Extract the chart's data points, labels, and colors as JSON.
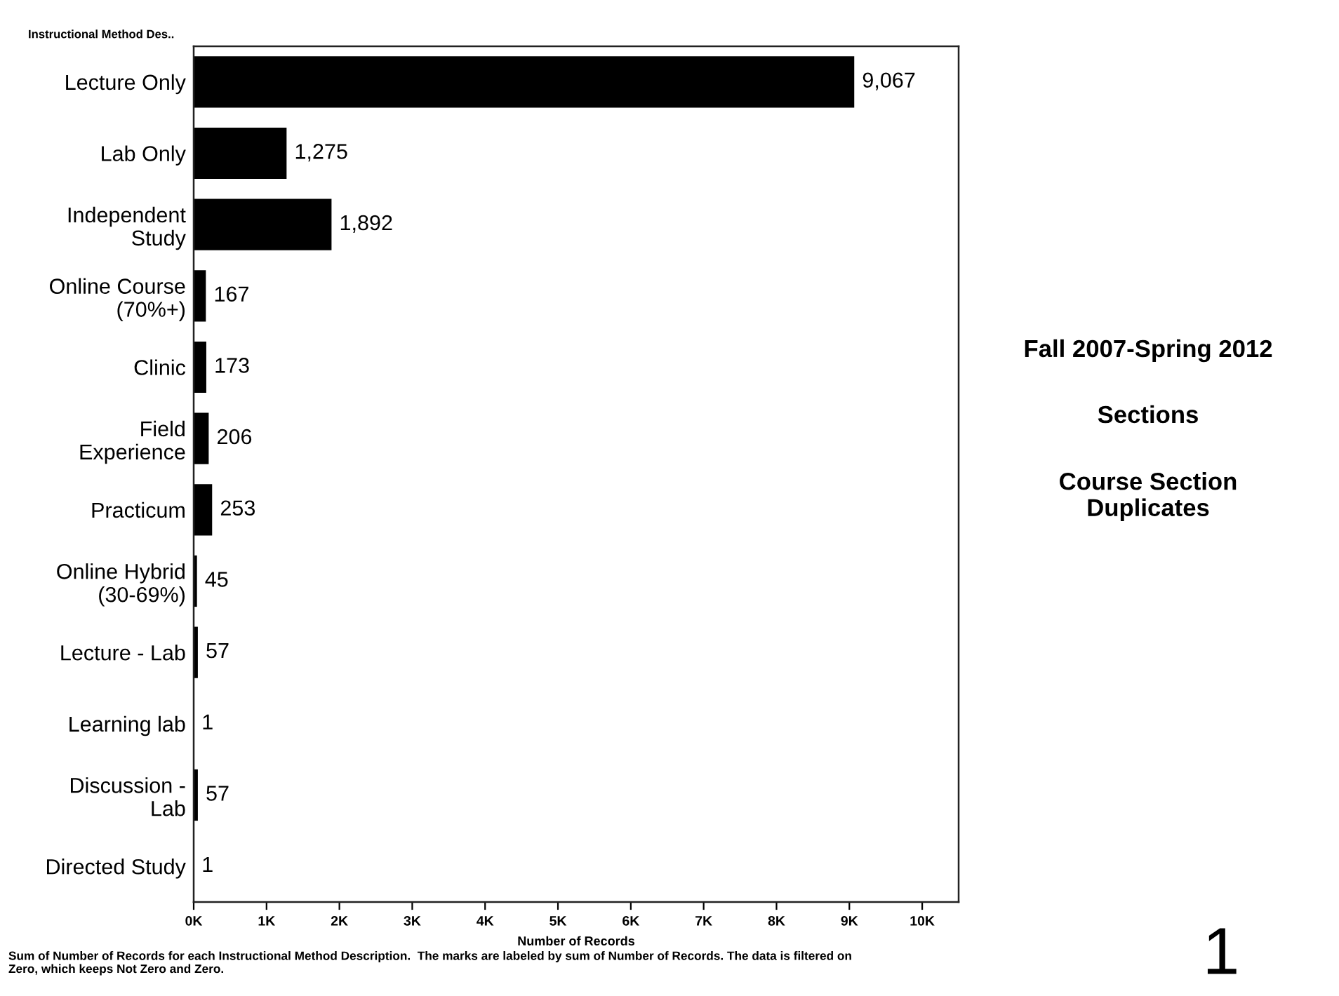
{
  "chart_data": {
    "type": "bar",
    "orientation": "horizontal",
    "title": "Fall 2007-Spring 2012",
    "subtitle": "Sections",
    "ylabel": "Instructional Method Des..",
    "xlabel": "Number of Records",
    "annotations": [
      "Course Section\nDuplicates",
      "1",
      "Sum of Number of Records for each Instructional Method Description.  The marks are labeled by sum of Number of Records. The data is filtered on\nZero, which keeps Not Zero and Zero."
    ],
    "categories": [
      "Lecture Only",
      "Lab Only",
      "Independent\nStudy",
      "Online Course\n(70%+)",
      "Clinic",
      "Field\nExperience",
      "Practicum",
      "Online Hybrid\n(30-69%)",
      "Lecture - Lab",
      "Learning lab",
      "Discussion -\nLab",
      "Directed Study"
    ],
    "values": [
      9067,
      1275,
      1892,
      167,
      173,
      206,
      253,
      45,
      57,
      1,
      57,
      1
    ],
    "value_labels": [
      "9,067",
      "1,275",
      "1,892",
      "167",
      "173",
      "206",
      "253",
      "45",
      "57",
      "1",
      "57",
      "1"
    ],
    "color": "#000000",
    "xlim": [
      0,
      10500
    ],
    "xticks": [
      {
        "value": 0,
        "label": "0K"
      },
      {
        "value": 1000,
        "label": "1K"
      },
      {
        "value": 2000,
        "label": "2K"
      },
      {
        "value": 3000,
        "label": "3K"
      },
      {
        "value": 4000,
        "label": "4K"
      },
      {
        "value": 5000,
        "label": "5K"
      },
      {
        "value": 6000,
        "label": "6K"
      },
      {
        "value": 7000,
        "label": "7K"
      },
      {
        "value": 8000,
        "label": "8K"
      },
      {
        "value": 9000,
        "label": "9K"
      },
      {
        "value": 10000,
        "label": "10K"
      }
    ]
  }
}
